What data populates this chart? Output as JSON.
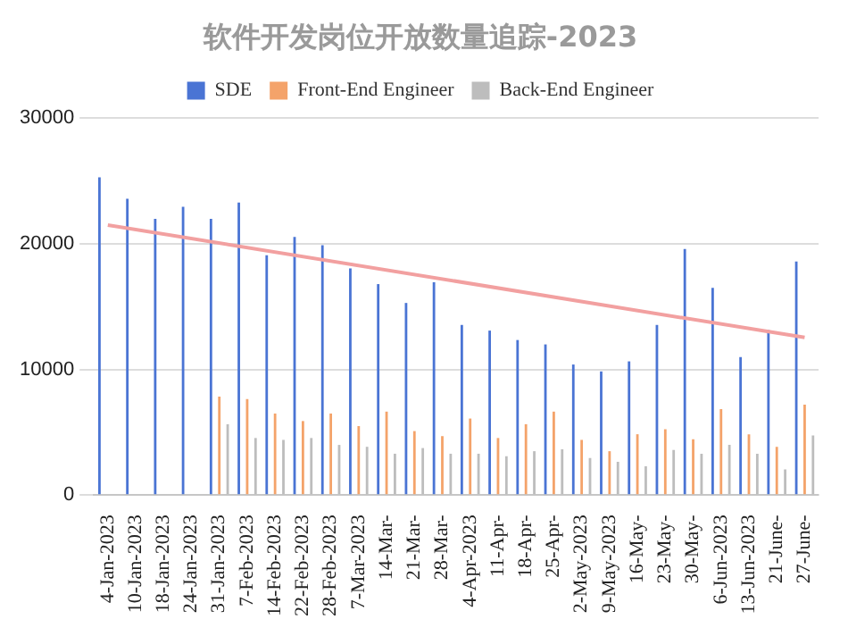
{
  "chart_data": {
    "type": "bar",
    "title": "软件开发岗位开放数量追踪-2023",
    "categories": [
      "4-Jan-2023",
      "10-Jan-2023",
      "18-Jan-2023",
      "24-Jan-2023",
      "31-Jan-2023",
      "7-Feb-2023",
      "14-Feb-2023",
      "22-Feb-2023",
      "28-Feb-2023",
      "7-Mar-2023",
      "14-Mar-",
      "21-Mar-",
      "28-Mar-",
      "4-Apr-2023",
      "11-Apr-",
      "18-Apr-",
      "25-Apr-",
      "2-May-2023",
      "9-May-2023",
      "16-May-",
      "23-May-",
      "30-May-",
      "6-Jun-2023",
      "13-Jun-2023",
      "21-June-",
      "27-June-"
    ],
    "series": [
      {
        "name": "SDE",
        "color": "#4a74d4",
        "values": [
          25300,
          23600,
          22000,
          22950,
          22000,
          23300,
          19100,
          20550,
          19900,
          18050,
          16800,
          15300,
          16950,
          13550,
          13100,
          12350,
          12000,
          10400,
          9850,
          10650,
          13550,
          19600,
          16500,
          11000,
          13150,
          18600
        ]
      },
      {
        "name": "Front-End Engineer",
        "color": "#f4a36a",
        "values": [
          null,
          null,
          null,
          null,
          7850,
          7650,
          6500,
          5900,
          6500,
          5500,
          6650,
          5100,
          4700,
          6100,
          4550,
          5650,
          6650,
          4400,
          3500,
          4850,
          5250,
          4450,
          6850,
          4850,
          3850,
          7200
        ]
      },
      {
        "name": "Back-End Engineer",
        "color": "#bdbdbd",
        "values": [
          null,
          null,
          null,
          null,
          5650,
          4550,
          4400,
          4550,
          4000,
          3850,
          3300,
          3750,
          3300,
          3300,
          3100,
          3500,
          3650,
          2950,
          2650,
          2300,
          3600,
          3300,
          4000,
          3300,
          2050,
          4750
        ]
      },
      {
        "type": "line",
        "color": "#f2a0a0",
        "values": [
          21500,
          null,
          null,
          null,
          null,
          null,
          null,
          null,
          null,
          null,
          null,
          null,
          null,
          null,
          null,
          null,
          null,
          null,
          null,
          null,
          null,
          null,
          null,
          null,
          null,
          12550
        ]
      }
    ],
    "ylim": [
      0,
      30000
    ],
    "yticks": [
      0,
      10000,
      20000,
      30000
    ],
    "grid": "y",
    "legend": "top"
  }
}
